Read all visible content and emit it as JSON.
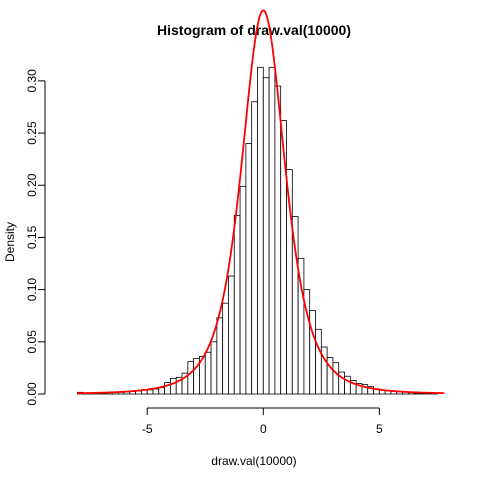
{
  "chart_data": {
    "type": "bar",
    "title": "Histogram of draw.val(10000)",
    "xlabel": "draw.val(10000)",
    "ylabel": "Density",
    "xlim": [
      -8.8,
      8.0
    ],
    "ylim": [
      0,
      0.32
    ],
    "x_ticks": [
      "-5",
      "0",
      "5"
    ],
    "x_tick_values": [
      -5,
      0,
      5
    ],
    "y_ticks": [
      "0.00",
      "0.05",
      "0.10",
      "0.15",
      "0.20",
      "0.25",
      "0.30"
    ],
    "y_tick_values": [
      0,
      0.05,
      0.1,
      0.15,
      0.2,
      0.25,
      0.3
    ],
    "bin_width": 0.25,
    "bins": [
      {
        "x0": -8.0,
        "density": 0.0016
      },
      {
        "x0": -7.75,
        "density": 0.0008
      },
      {
        "x0": -7.5,
        "density": 0.0008
      },
      {
        "x0": -7.25,
        "density": 0.0012
      },
      {
        "x0": -7.0,
        "density": 0.0008
      },
      {
        "x0": -6.75,
        "density": 0.0012
      },
      {
        "x0": -6.5,
        "density": 0.0016
      },
      {
        "x0": -6.25,
        "density": 0.0016
      },
      {
        "x0": -6.0,
        "density": 0.002
      },
      {
        "x0": -5.75,
        "density": 0.0024
      },
      {
        "x0": -5.5,
        "density": 0.0028
      },
      {
        "x0": -5.25,
        "density": 0.004
      },
      {
        "x0": -5.0,
        "density": 0.004
      },
      {
        "x0": -4.75,
        "density": 0.0048
      },
      {
        "x0": -4.5,
        "density": 0.006
      },
      {
        "x0": -4.25,
        "density": 0.011
      },
      {
        "x0": -4.0,
        "density": 0.015
      },
      {
        "x0": -3.75,
        "density": 0.016
      },
      {
        "x0": -3.5,
        "density": 0.02
      },
      {
        "x0": -3.25,
        "density": 0.031
      },
      {
        "x0": -3.0,
        "density": 0.034
      },
      {
        "x0": -2.75,
        "density": 0.036
      },
      {
        "x0": -2.5,
        "density": 0.04
      },
      {
        "x0": -2.25,
        "density": 0.05
      },
      {
        "x0": -2.0,
        "density": 0.073
      },
      {
        "x0": -1.75,
        "density": 0.087
      },
      {
        "x0": -1.5,
        "density": 0.113
      },
      {
        "x0": -1.25,
        "density": 0.171
      },
      {
        "x0": -1.0,
        "density": 0.199
      },
      {
        "x0": -0.75,
        "density": 0.24
      },
      {
        "x0": -0.5,
        "density": 0.28
      },
      {
        "x0": -0.25,
        "density": 0.313
      },
      {
        "x0": 0.0,
        "density": 0.303
      },
      {
        "x0": 0.25,
        "density": 0.313
      },
      {
        "x0": 0.5,
        "density": 0.295
      },
      {
        "x0": 0.75,
        "density": 0.262
      },
      {
        "x0": 1.0,
        "density": 0.215
      },
      {
        "x0": 1.25,
        "density": 0.17
      },
      {
        "x0": 1.5,
        "density": 0.13
      },
      {
        "x0": 1.75,
        "density": 0.1
      },
      {
        "x0": 2.0,
        "density": 0.08
      },
      {
        "x0": 2.25,
        "density": 0.062
      },
      {
        "x0": 2.5,
        "density": 0.045
      },
      {
        "x0": 2.75,
        "density": 0.035
      },
      {
        "x0": 3.0,
        "density": 0.03
      },
      {
        "x0": 3.25,
        "density": 0.021
      },
      {
        "x0": 3.5,
        "density": 0.017
      },
      {
        "x0": 3.75,
        "density": 0.013
      },
      {
        "x0": 4.0,
        "density": 0.01
      },
      {
        "x0": 4.25,
        "density": 0.009
      },
      {
        "x0": 4.5,
        "density": 0.007
      },
      {
        "x0": 4.75,
        "density": 0.005
      },
      {
        "x0": 5.0,
        "density": 0.004
      },
      {
        "x0": 5.25,
        "density": 0.003
      },
      {
        "x0": 5.5,
        "density": 0.0026
      },
      {
        "x0": 5.75,
        "density": 0.0024
      },
      {
        "x0": 6.0,
        "density": 0.002
      },
      {
        "x0": 6.25,
        "density": 0.0012
      },
      {
        "x0": 6.5,
        "density": 0.0008
      },
      {
        "x0": 6.75,
        "density": 0.0006
      },
      {
        "x0": 7.0,
        "density": 0.0008
      },
      {
        "x0": 7.25,
        "density": 0.0004
      }
    ],
    "curve": {
      "distribution": "student-t",
      "df": 3,
      "x_range": [
        -8.0,
        7.8
      ],
      "color": "#ff0000"
    },
    "bar_fill": "#ffffff",
    "bar_stroke": "#000000",
    "grid": false,
    "legend": "none"
  }
}
